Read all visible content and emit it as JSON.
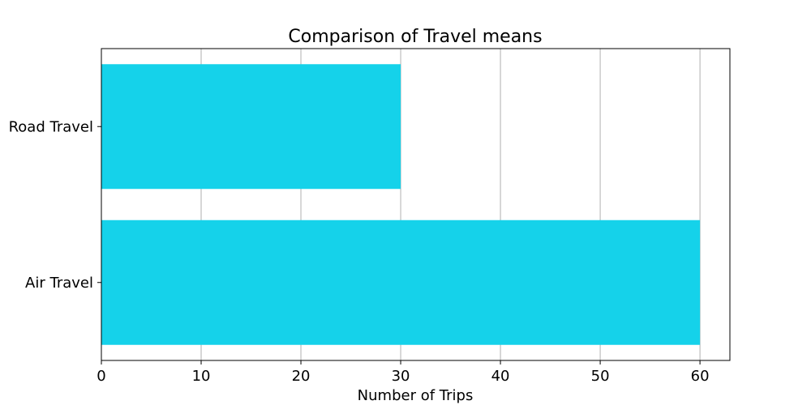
{
  "chart_data": {
    "type": "bar",
    "orientation": "horizontal",
    "title": "Comparison of Travel means",
    "xlabel": "Number of Trips",
    "ylabel": "",
    "categories": [
      "Air Travel",
      "Road Travel"
    ],
    "values": [
      60,
      30
    ],
    "xlim": [
      0,
      63
    ],
    "x_ticks": [
      0,
      10,
      20,
      30,
      40,
      50,
      60
    ],
    "grid": "vertical",
    "legend": "none",
    "bar_color": "#15d2ea",
    "grid_color": "#b0b0b0"
  }
}
